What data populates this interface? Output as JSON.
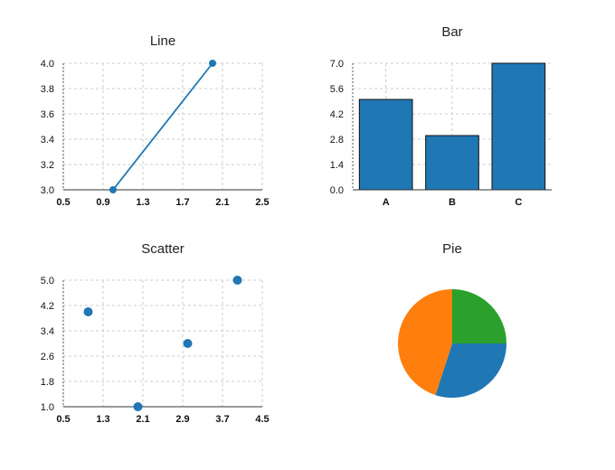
{
  "chart_data": [
    {
      "type": "line",
      "title": "Line",
      "x": [
        1,
        2
      ],
      "y": [
        3,
        4
      ],
      "xlim": [
        0.5,
        2.5
      ],
      "ylim": [
        3.0,
        4.0
      ],
      "xticks": [
        "0.5",
        "0.9",
        "1.3",
        "1.7",
        "2.1",
        "2.5"
      ],
      "yticks": [
        "3.0",
        "3.2",
        "3.4",
        "3.6",
        "3.8",
        "4.0"
      ],
      "grid": true,
      "color": "#1f77b4"
    },
    {
      "type": "bar",
      "title": "Bar",
      "categories": [
        "A",
        "B",
        "C"
      ],
      "values": [
        5,
        3,
        7
      ],
      "ylim": [
        0,
        7
      ],
      "yticks": [
        "0.0",
        "1.4",
        "2.8",
        "4.2",
        "5.6",
        "7.0"
      ],
      "grid": true,
      "color": "#1f77b4"
    },
    {
      "type": "scatter",
      "title": "Scatter",
      "x": [
        1,
        2,
        3,
        4
      ],
      "y": [
        4,
        1,
        3,
        5
      ],
      "xlim": [
        0.5,
        4.5
      ],
      "ylim": [
        1.0,
        5.0
      ],
      "xticks": [
        "0.5",
        "1.3",
        "2.1",
        "2.9",
        "3.7",
        "4.5"
      ],
      "yticks": [
        "1.0",
        "1.8",
        "2.6",
        "3.4",
        "4.2",
        "5.0"
      ],
      "grid": true,
      "color": "#1f77b4"
    },
    {
      "type": "pie",
      "title": "Pie",
      "values": [
        25,
        30,
        45
      ],
      "colors": [
        "#2ca02c",
        "#1f77b4",
        "#ff7f0e"
      ]
    }
  ]
}
